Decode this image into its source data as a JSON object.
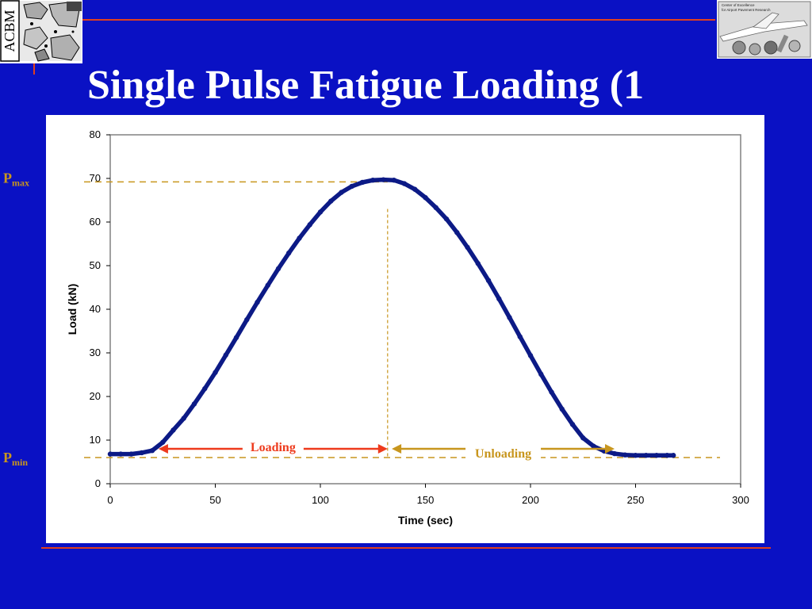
{
  "slide": {
    "title": "Single Pulse Fatigue Loading (1",
    "logo_left_text": "ACBM",
    "logo_right_text": [
      "Center of Excellence",
      "for Airport Pavement Research"
    ]
  },
  "colors": {
    "background": "#0a11c4",
    "rule": "#e0401e",
    "series": "#0c1a86",
    "pmax_label": "#c8961e",
    "loading": "#ee3a1c",
    "unloading": "#c8961e"
  },
  "chart_data": {
    "type": "line",
    "xlabel": "Time (sec)",
    "ylabel": "Load (kN)",
    "xlim": [
      0,
      300
    ],
    "ylim": [
      0,
      80
    ],
    "xticks": [
      0,
      50,
      100,
      150,
      200,
      250,
      300
    ],
    "yticks": [
      0,
      10,
      20,
      30,
      40,
      50,
      60,
      70,
      80
    ],
    "grid": false,
    "series": [
      {
        "x": [
          0,
          5,
          10,
          15,
          20,
          25,
          30,
          35,
          40,
          45,
          50,
          55,
          60,
          65,
          70,
          75,
          80,
          85,
          90,
          95,
          100,
          105,
          110,
          115,
          120,
          125,
          130,
          135,
          140,
          145,
          150,
          155,
          160,
          165,
          170,
          175,
          180,
          185,
          190,
          195,
          200,
          205,
          210,
          215,
          220,
          225,
          230,
          235,
          240,
          245,
          250,
          255,
          260,
          265,
          268
        ],
        "y": [
          6.8,
          6.8,
          6.8,
          7.1,
          7.6,
          9.5,
          12.3,
          15.0,
          18.3,
          21.8,
          25.5,
          29.5,
          33.5,
          37.6,
          41.6,
          45.5,
          49.3,
          52.9,
          56.3,
          59.4,
          62.3,
          64.8,
          66.8,
          68.2,
          69.1,
          69.6,
          69.7,
          69.6,
          68.8,
          67.5,
          65.6,
          63.3,
          60.7,
          57.6,
          54.2,
          50.5,
          46.6,
          42.4,
          38.1,
          33.7,
          29.4,
          25.1,
          21.0,
          17.1,
          13.6,
          10.5,
          8.6,
          7.5,
          6.9,
          6.6,
          6.5,
          6.5,
          6.5,
          6.5,
          6.5
        ]
      }
    ],
    "annotations": {
      "pmax": {
        "p": "P",
        "sub": "max",
        "value": 69.2
      },
      "pmin": {
        "p": "P",
        "sub": "min",
        "value": 6.0
      },
      "peak_time": 132,
      "loading": {
        "label": "Loading",
        "from": 23,
        "to": 132
      },
      "unloading": {
        "label": "Unloading",
        "from": 134,
        "to": 240
      }
    }
  }
}
